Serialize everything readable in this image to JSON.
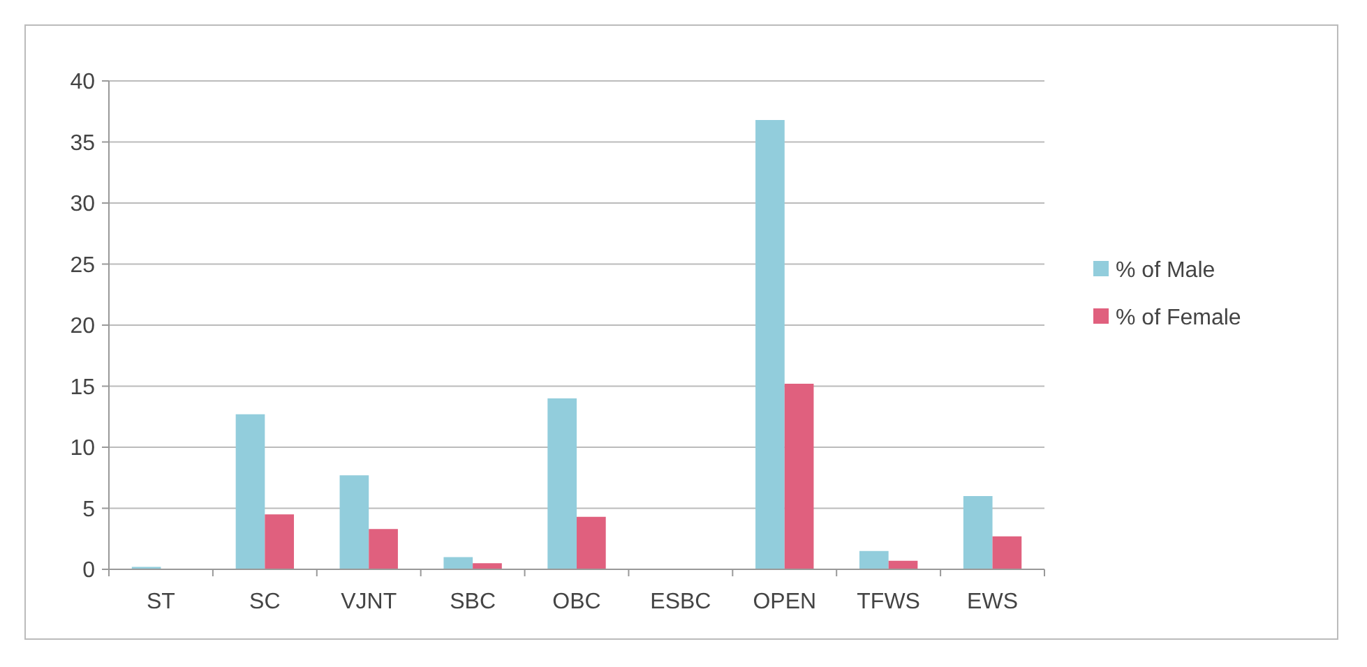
{
  "chart_data": {
    "type": "bar",
    "categories": [
      "ST",
      "SC",
      "VJNT",
      "SBC",
      "OBC",
      "ESBC",
      "OPEN",
      "TFWS",
      "EWS"
    ],
    "series": [
      {
        "name": "% of Male",
        "color": "#92cddc",
        "values": [
          0.2,
          12.7,
          7.7,
          1.0,
          14.0,
          0,
          36.8,
          1.5,
          6.0
        ]
      },
      {
        "name": "% of Female",
        "color": "#e0607e",
        "values": [
          0,
          4.5,
          3.3,
          0.5,
          4.3,
          0,
          15.2,
          0.7,
          2.7
        ]
      }
    ],
    "ylim": [
      0,
      40
    ],
    "yticks": [
      0,
      5,
      10,
      15,
      20,
      25,
      30,
      35,
      40
    ],
    "grid": "y",
    "legend": "right"
  }
}
